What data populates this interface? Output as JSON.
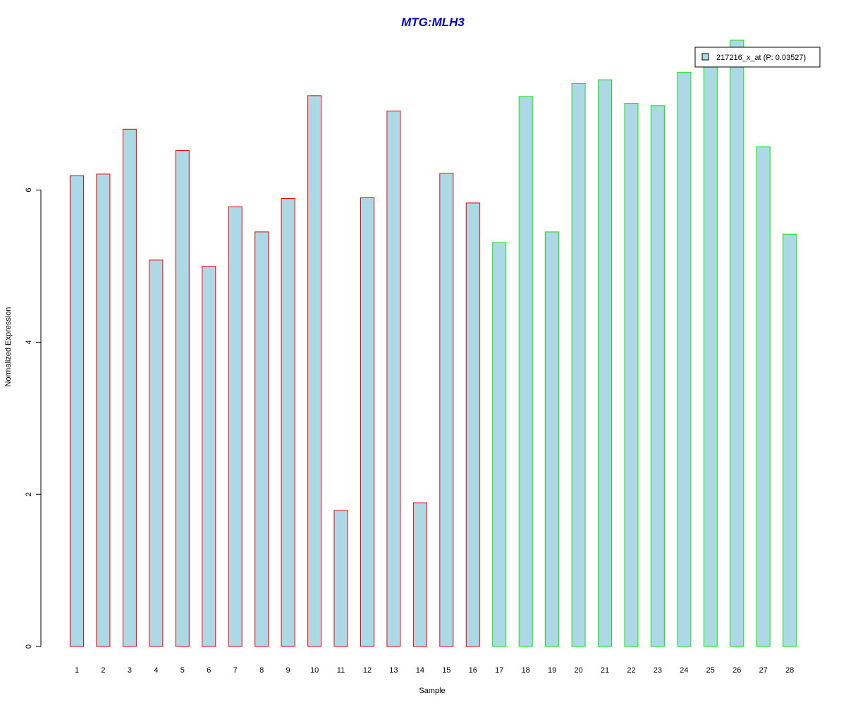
{
  "chart_data": {
    "type": "bar",
    "title": "MTG:MLH3",
    "xlabel": "Sample",
    "ylabel": "Normalized Expression",
    "categories": [
      "1",
      "2",
      "3",
      "4",
      "5",
      "6",
      "7",
      "8",
      "9",
      "10",
      "11",
      "12",
      "13",
      "14",
      "15",
      "16",
      "17",
      "18",
      "19",
      "20",
      "21",
      "22",
      "23",
      "24",
      "25",
      "26",
      "27",
      "28"
    ],
    "series": [
      {
        "name": "217216_x_at (P: 0.03527)",
        "values": [
          6.19,
          6.21,
          6.8,
          5.08,
          6.52,
          5.0,
          5.78,
          5.45,
          5.89,
          7.24,
          1.79,
          5.9,
          7.04,
          1.89,
          6.22,
          5.83,
          5.31,
          7.23,
          5.45,
          7.4,
          7.45,
          7.14,
          7.11,
          7.55,
          7.72,
          7.97,
          6.57,
          5.42
        ]
      }
    ],
    "bar_groups": [
      {
        "samples": "1-16",
        "border_color": "#ff0000"
      },
      {
        "samples": "17-28",
        "border_color": "#00ee00"
      }
    ],
    "yticks": [
      0,
      2,
      4,
      6
    ],
    "ylim": [
      0,
      8.2
    ],
    "grid": false,
    "legend_position": "top-right",
    "colors": {
      "bar_fill": "#add8e6",
      "title": "#0000cc"
    }
  }
}
